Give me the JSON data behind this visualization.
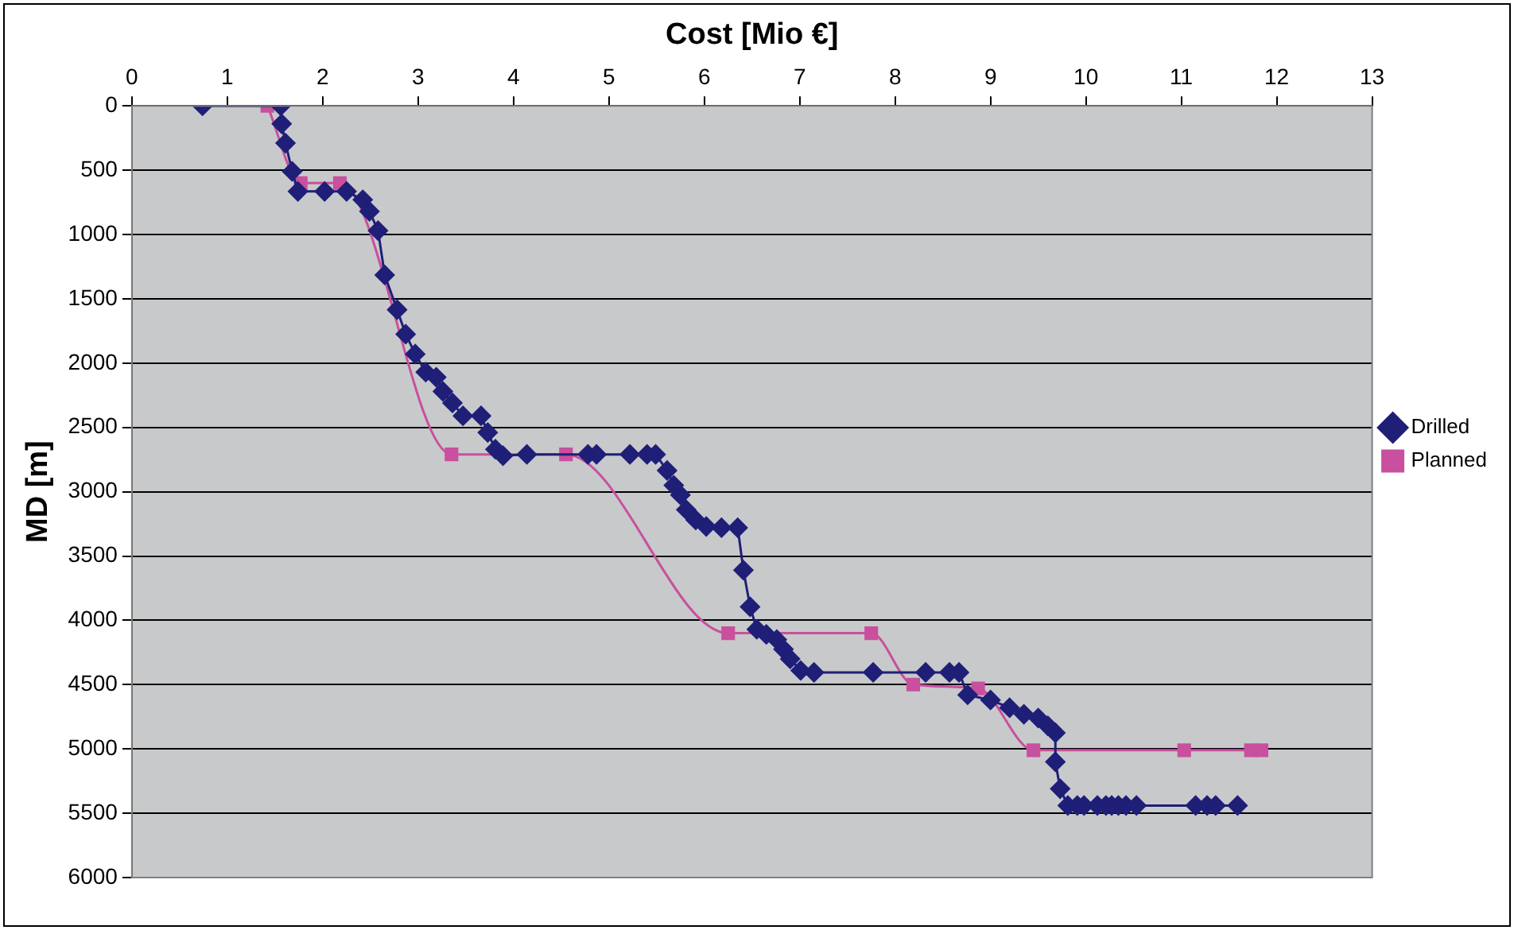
{
  "chart_data": {
    "type": "line",
    "xlabel": "Cost [Mio €]",
    "ylabel": "MD [m]",
    "xlim": [
      0,
      13
    ],
    "xticks": [
      0,
      1,
      2,
      3,
      4,
      5,
      6,
      7,
      8,
      9,
      10,
      11,
      12,
      13
    ],
    "ylim": [
      6000,
      0
    ],
    "yticks": [
      0,
      500,
      1000,
      1500,
      2000,
      2500,
      3000,
      3500,
      4000,
      4500,
      5000,
      5500,
      6000
    ],
    "grid": "y",
    "legend": "right",
    "series": [
      {
        "name": "Drilled",
        "color": "#1f1f78",
        "marker": "diamond",
        "x": [
          0.74,
          1.56,
          1.57,
          1.61,
          1.68,
          1.74,
          2.02,
          2.25,
          2.42,
          2.49,
          2.58,
          2.65,
          2.78,
          2.87,
          2.97,
          3.08,
          3.19,
          3.26,
          3.36,
          3.47,
          3.66,
          3.73,
          3.81,
          3.89,
          4.14,
          4.78,
          4.87,
          5.22,
          5.4,
          5.49,
          5.61,
          5.68,
          5.75,
          5.81,
          5.91,
          6.02,
          6.18,
          6.35,
          6.41,
          6.48,
          6.55,
          6.65,
          6.76,
          6.83,
          6.9,
          7.01,
          7.15,
          7.77,
          8.32,
          8.57,
          8.67,
          8.76,
          9.0,
          9.2,
          9.35,
          9.5,
          9.6,
          9.68,
          9.68,
          9.73,
          9.81,
          9.91,
          9.98,
          10.12,
          10.21,
          10.27,
          10.34,
          10.42,
          10.53,
          11.15,
          11.27,
          11.36,
          11.59
        ],
        "values": [
          0,
          0,
          140,
          290,
          510,
          665,
          665,
          665,
          730,
          820,
          970,
          1315,
          1585,
          1775,
          1930,
          2070,
          2110,
          2220,
          2310,
          2410,
          2410,
          2540,
          2670,
          2720,
          2710,
          2710,
          2710,
          2710,
          2710,
          2710,
          2835,
          2950,
          3025,
          3140,
          3220,
          3270,
          3280,
          3280,
          3610,
          3895,
          4070,
          4110,
          4150,
          4225,
          4300,
          4390,
          4405,
          4405,
          4405,
          4405,
          4405,
          4580,
          4620,
          4680,
          4730,
          4760,
          4820,
          4875,
          5100,
          5310,
          5440,
          5440,
          5440,
          5440,
          5440,
          5440,
          5440,
          5440,
          5440,
          5440,
          5440,
          5440,
          5440
        ]
      },
      {
        "name": "Planned",
        "color": "#c8509e",
        "marker": "square",
        "x": [
          1.42,
          1.77,
          2.18,
          3.35,
          4.55,
          6.25,
          7.75,
          8.19,
          8.87,
          9.45,
          11.03,
          11.73,
          11.84
        ],
        "values": [
          0,
          600,
          600,
          2710,
          2710,
          4100,
          4100,
          4500,
          4530,
          5010,
          5010,
          5010,
          5010
        ]
      }
    ]
  }
}
